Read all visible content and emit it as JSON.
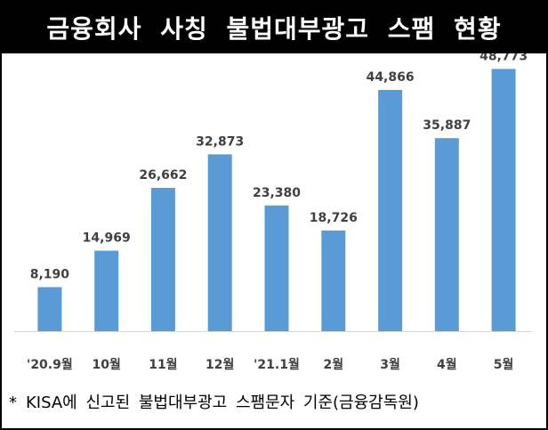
{
  "title": "금융회사 사칭 불법대부광고 스팸 현황",
  "footnote": {
    "marker": "*",
    "text": "KISA에 신고된 불법대부광고 스팸문자 기준(금융감독원)"
  },
  "colors": {
    "bar": "#5B9BD5",
    "title_background": "#000000",
    "title_text": "#FFFFFF",
    "baseline": "#D9D9D9",
    "label_text": "#404040"
  },
  "chart_data": {
    "type": "bar",
    "title": "금융회사 사칭 불법대부광고 스팸 현황",
    "categories": [
      "'20.9월",
      "10월",
      "11월",
      "12월",
      "'21.1월",
      "2월",
      "3월",
      "4월",
      "5월"
    ],
    "values": [
      8190,
      14969,
      26662,
      32873,
      23380,
      18726,
      44866,
      35887,
      48773
    ],
    "data_labels": [
      "8,190",
      "14,969",
      "26,662",
      "32,873",
      "23,380",
      "18,726",
      "44,866",
      "35,887",
      "48,773"
    ],
    "xlabel": "",
    "ylabel": "",
    "ylim": [
      0,
      50000
    ],
    "grid": false,
    "legend": "none"
  }
}
